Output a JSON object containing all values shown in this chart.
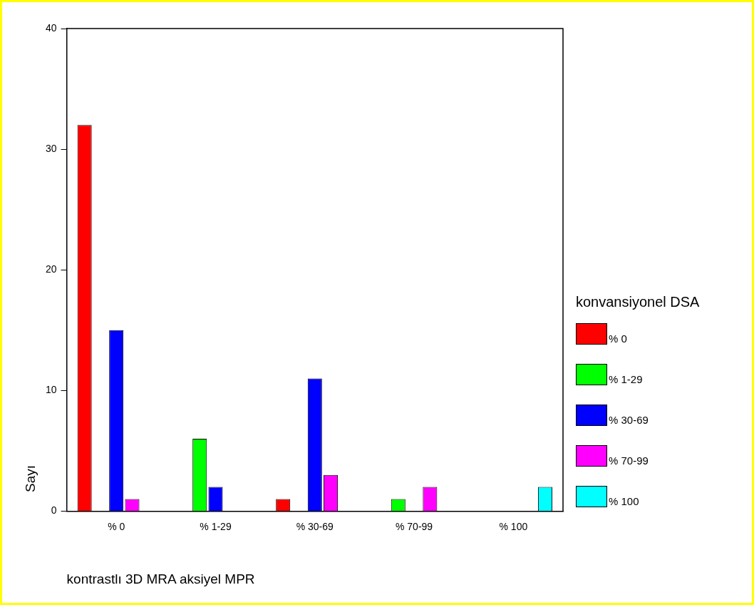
{
  "chart_data": {
    "type": "bar",
    "xlabel": "kontrastlı 3D MRA aksiyel MPR",
    "ylabel": "Sayı",
    "legend_title": "konvansiyonel DSA",
    "categories": [
      "% 0",
      "% 1-29",
      "% 30-69",
      "% 70-99",
      "% 100"
    ],
    "series": [
      {
        "name": "% 0",
        "color": "#ff0000",
        "values": [
          32,
          null,
          1,
          null,
          null
        ]
      },
      {
        "name": "% 1-29",
        "color": "#00ff00",
        "values": [
          null,
          6,
          null,
          1,
          null
        ]
      },
      {
        "name": "% 30-69",
        "color": "#0000ff",
        "values": [
          15,
          2,
          11,
          null,
          null
        ]
      },
      {
        "name": "% 70-99",
        "color": "#ff00ff",
        "values": [
          1,
          null,
          3,
          2,
          null
        ]
      },
      {
        "name": "% 100",
        "color": "#00ffff",
        "values": [
          null,
          null,
          null,
          null,
          2
        ]
      }
    ],
    "ylim": [
      0,
      40
    ],
    "yticks": [
      0,
      10,
      20,
      30,
      40
    ],
    "grid": false,
    "legend": "right"
  }
}
